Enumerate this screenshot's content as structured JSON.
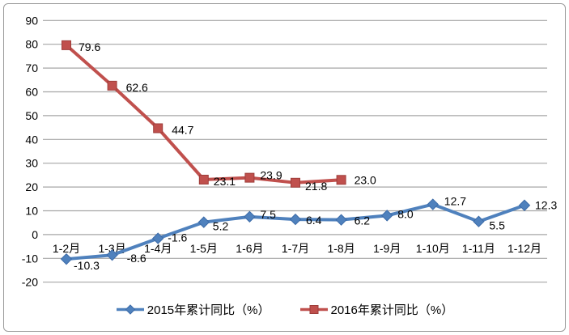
{
  "chart_data": {
    "type": "line",
    "title": "",
    "xlabel": "",
    "ylabel": "",
    "grid": true,
    "legend_position": "bottom",
    "categories": [
      "1-2月",
      "1-3月",
      "1-4月",
      "1-5月",
      "1-6月",
      "1-7月",
      "1-8月",
      "1-9月",
      "1-10月",
      "1-11月",
      "1-12月"
    ],
    "y_axis": {
      "min": -20,
      "max": 90,
      "step": 10,
      "ticks": [
        90,
        80,
        70,
        60,
        50,
        40,
        30,
        20,
        10,
        0,
        -10,
        -20
      ]
    },
    "series": [
      {
        "name": "2015年累计同比（%）",
        "color": "#4F81BD",
        "marker": "diamond",
        "values": [
          -10.3,
          -8.6,
          -1.6,
          5.2,
          7.5,
          6.4,
          6.2,
          8.0,
          12.7,
          5.5,
          12.3
        ],
        "labels": [
          "-10.3",
          "-8.6",
          "-1.6",
          "5.2",
          "7.5",
          "6.4",
          "6.2",
          "8.0",
          "12.7",
          "5.5",
          "12.3"
        ],
        "label_offsets": [
          [
            9,
            8
          ],
          [
            18,
            4
          ],
          [
            12,
            -1
          ],
          [
            11,
            5
          ],
          [
            13,
            -3
          ],
          [
            13,
            1
          ],
          [
            16,
            1
          ],
          [
            13,
            -2
          ],
          [
            14,
            -4
          ],
          [
            13,
            5
          ],
          [
            13,
            0
          ]
        ]
      },
      {
        "name": "2016年累计同比（%）",
        "color": "#C0504D",
        "marker": "square",
        "values": [
          79.6,
          62.6,
          44.7,
          23.1,
          23.9,
          21.8,
          23.0
        ],
        "labels": [
          "79.6",
          "62.6",
          "44.7",
          "23.1",
          "23.9",
          "21.8",
          "23.0"
        ],
        "label_offsets": [
          [
            15,
            2
          ],
          [
            17,
            2
          ],
          [
            17,
            2
          ],
          [
            12,
            2
          ],
          [
            13,
            -3
          ],
          [
            12,
            4
          ],
          [
            16,
            0
          ]
        ]
      }
    ],
    "colors": {
      "gridline": "#a6a6a6",
      "axis_text": "#000000",
      "data_label_text": "#000000",
      "chart_border": "#9b9b9b",
      "background": "#ffffff"
    }
  }
}
